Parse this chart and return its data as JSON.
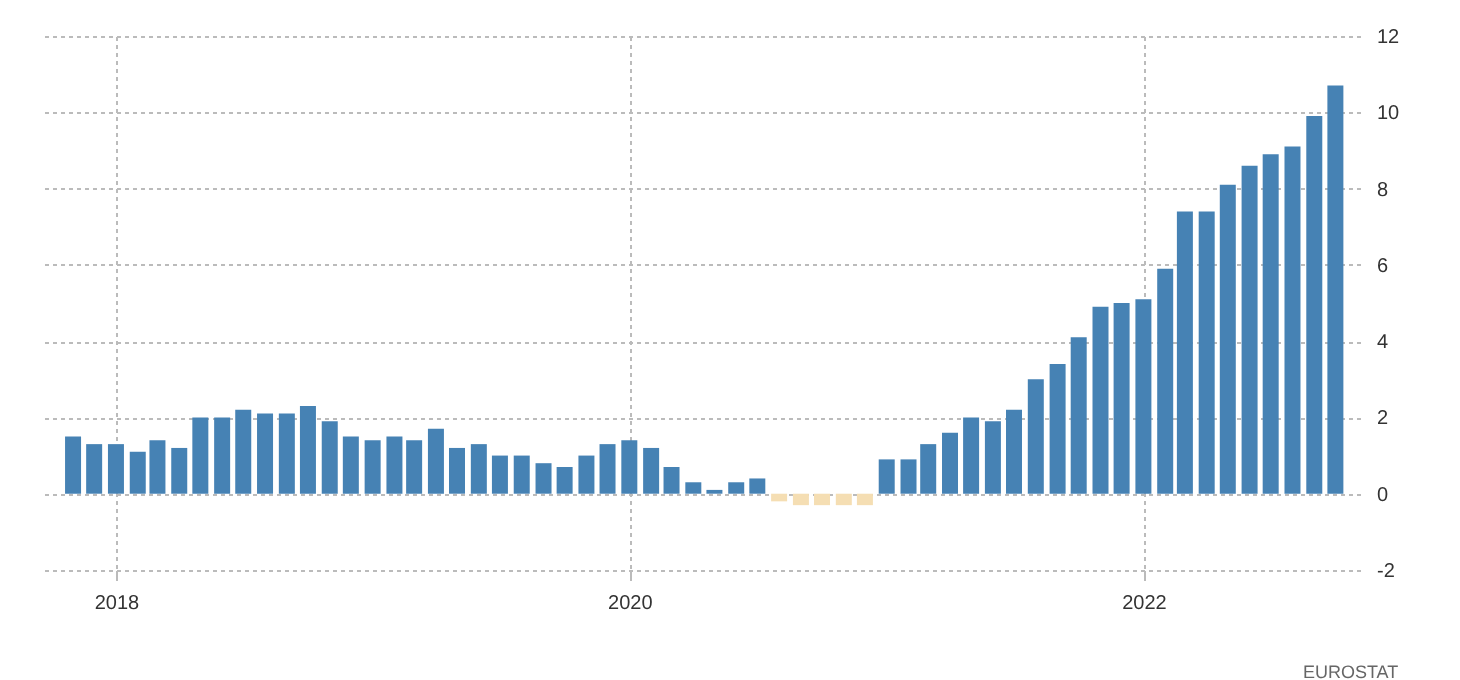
{
  "chart_data": {
    "type": "bar",
    "x": [
      "2017-11",
      "2017-12",
      "2018-01",
      "2018-02",
      "2018-03",
      "2018-04",
      "2018-05",
      "2018-06",
      "2018-07",
      "2018-08",
      "2018-09",
      "2018-10",
      "2018-11",
      "2018-12",
      "2019-01",
      "2019-02",
      "2019-03",
      "2019-04",
      "2019-05",
      "2019-06",
      "2019-07",
      "2019-08",
      "2019-09",
      "2019-10",
      "2019-11",
      "2019-12",
      "2020-01",
      "2020-02",
      "2020-03",
      "2020-04",
      "2020-05",
      "2020-06",
      "2020-07",
      "2020-08",
      "2020-09",
      "2020-10",
      "2020-11",
      "2020-12",
      "2021-01",
      "2021-02",
      "2021-03",
      "2021-04",
      "2021-05",
      "2021-06",
      "2021-07",
      "2021-08",
      "2021-09",
      "2021-10",
      "2021-11",
      "2021-12",
      "2022-01",
      "2022-02",
      "2022-03",
      "2022-04",
      "2022-05",
      "2022-06",
      "2022-07",
      "2022-08",
      "2022-09",
      "2022-10"
    ],
    "values": [
      1.5,
      1.3,
      1.3,
      1.1,
      1.4,
      1.2,
      2.0,
      2.0,
      2.2,
      2.1,
      2.1,
      2.3,
      1.9,
      1.5,
      1.4,
      1.5,
      1.4,
      1.7,
      1.2,
      1.3,
      1.0,
      1.0,
      0.8,
      0.7,
      1.0,
      1.3,
      1.4,
      1.2,
      0.7,
      0.3,
      0.1,
      0.3,
      0.4,
      -0.2,
      -0.3,
      -0.3,
      -0.3,
      -0.3,
      0.9,
      0.9,
      1.3,
      1.6,
      2.0,
      1.9,
      2.2,
      3.0,
      3.4,
      4.1,
      4.9,
      5.0,
      5.1,
      5.9,
      7.4,
      7.4,
      8.1,
      8.6,
      8.9,
      9.1,
      9.9,
      10.7
    ],
    "colors": [
      "#4682b4",
      "#4682b4",
      "#4682b4",
      "#4682b4",
      "#4682b4",
      "#4682b4",
      "#4682b4",
      "#4682b4",
      "#4682b4",
      "#4682b4",
      "#4682b4",
      "#4682b4",
      "#4682b4",
      "#4682b4",
      "#4682b4",
      "#4682b4",
      "#4682b4",
      "#4682b4",
      "#4682b4",
      "#4682b4",
      "#4682b4",
      "#4682b4",
      "#4682b4",
      "#4682b4",
      "#4682b4",
      "#4682b4",
      "#4682b4",
      "#4682b4",
      "#4682b4",
      "#4682b4",
      "#4682b4",
      "#4682b4",
      "#4682b4",
      "#f5deb3",
      "#f5deb3",
      "#f5deb3",
      "#f5deb3",
      "#f5deb3",
      "#4682b4",
      "#4682b4",
      "#4682b4",
      "#4682b4",
      "#4682b4",
      "#4682b4",
      "#4682b4",
      "#4682b4",
      "#4682b4",
      "#4682b4",
      "#4682b4",
      "#4682b4",
      "#4682b4",
      "#4682b4",
      "#4682b4",
      "#4682b4",
      "#4682b4",
      "#4682b4",
      "#4682b4",
      "#4682b4",
      "#4682b4",
      "#4682b4"
    ],
    "xlim": [
      "2017-09-15",
      "2022-11-05"
    ],
    "xticks": [
      "2018",
      "2020",
      "2022"
    ],
    "ylim": [
      -2,
      12
    ],
    "yticks": [
      -2,
      0,
      2,
      4,
      6,
      8,
      10,
      12
    ],
    "grid": true,
    "annotations": [
      "EUROSTAT"
    ]
  }
}
